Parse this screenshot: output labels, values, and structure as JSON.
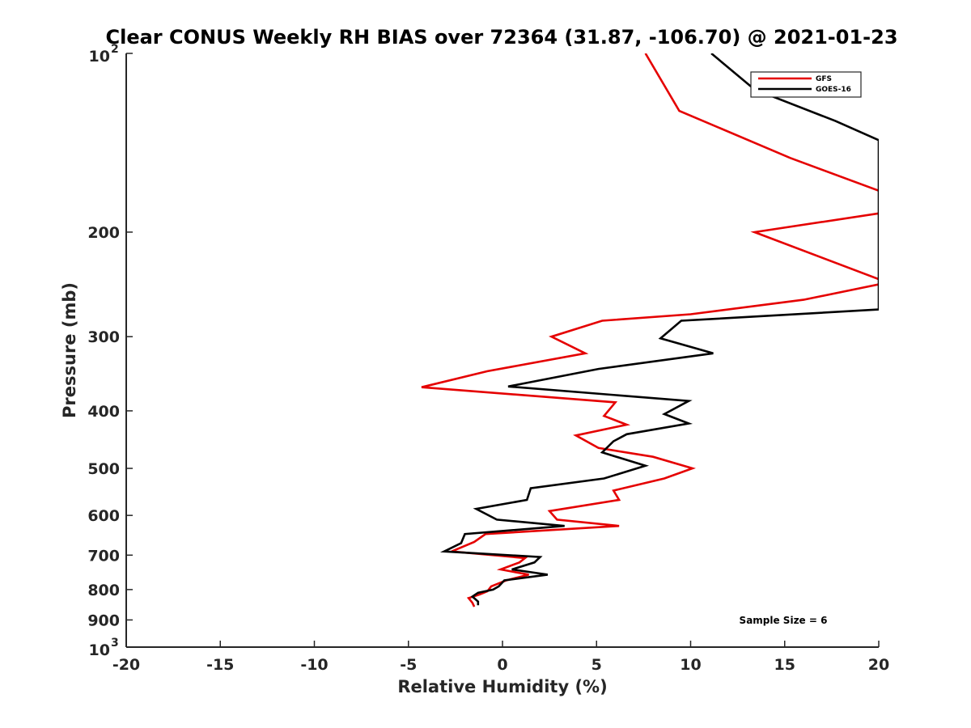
{
  "chart_data": {
    "type": "line",
    "title": "Clear CONUS Weekly RH BIAS over 72364 (31.87, -106.70) @ 2021-01-23",
    "xlabel": "Relative Humidity (%)",
    "ylabel": "Pressure (mb)",
    "xlim": [
      -20,
      20
    ],
    "ylim": [
      1000,
      100
    ],
    "y_scale": "log",
    "y_reversed": true,
    "grid": false,
    "legend_position": "top-right",
    "annotation": "Sample Size = 6",
    "x_ticks": [
      "-20",
      "-15",
      "-10",
      "-5",
      "0",
      "5",
      "10",
      "15",
      "20"
    ],
    "y_ticks": [
      {
        "value": 100,
        "label": "10",
        "sup": "2"
      },
      {
        "value": 200,
        "label": "200",
        "sup": ""
      },
      {
        "value": 300,
        "label": "300",
        "sup": ""
      },
      {
        "value": 400,
        "label": "400",
        "sup": ""
      },
      {
        "value": 500,
        "label": "500",
        "sup": ""
      },
      {
        "value": 600,
        "label": "600",
        "sup": ""
      },
      {
        "value": 700,
        "label": "700",
        "sup": ""
      },
      {
        "value": 800,
        "label": "800",
        "sup": ""
      },
      {
        "value": 900,
        "label": "900",
        "sup": ""
      },
      {
        "value": 1000,
        "label": "10",
        "sup": "3"
      }
    ],
    "series": [
      {
        "name": "GFS",
        "color": "#e50000",
        "points": [
          [
            7.6,
            100
          ],
          [
            9.4,
            125
          ],
          [
            15.3,
            150
          ],
          [
            21,
            175
          ],
          [
            21,
            185
          ],
          [
            20,
            186
          ],
          [
            13.4,
            200
          ],
          [
            20,
            240
          ],
          [
            21,
            245
          ],
          [
            20,
            245
          ],
          [
            16.0,
            260
          ],
          [
            10.0,
            275
          ],
          [
            5.3,
            282
          ],
          [
            2.6,
            300
          ],
          [
            4.4,
            320
          ],
          [
            -0.8,
            343
          ],
          [
            -4.3,
            365
          ],
          [
            6.0,
            387
          ],
          [
            5.4,
            408
          ],
          [
            6.6,
            422
          ],
          [
            3.9,
            440
          ],
          [
            5.1,
            462
          ],
          [
            8.0,
            478
          ],
          [
            10.1,
            500
          ],
          [
            8.6,
            520
          ],
          [
            5.9,
            545
          ],
          [
            6.2,
            565
          ],
          [
            2.5,
            590
          ],
          [
            2.9,
            610
          ],
          [
            6.2,
            625
          ],
          [
            -0.9,
            645
          ],
          [
            -1.5,
            665
          ],
          [
            -2.7,
            690
          ],
          [
            1.2,
            708
          ],
          [
            0.9,
            720
          ],
          [
            -0.1,
            740
          ],
          [
            1.4,
            755
          ],
          [
            0.2,
            772
          ],
          [
            -0.6,
            790
          ],
          [
            -0.8,
            805
          ],
          [
            -1.2,
            815
          ],
          [
            -1.8,
            827
          ],
          [
            -1.6,
            842
          ],
          [
            -1.5,
            855
          ]
        ]
      },
      {
        "name": "GOES-16",
        "color": "#000000",
        "points": [
          [
            11.1,
            100
          ],
          [
            13.4,
            115
          ],
          [
            17.7,
            130
          ],
          [
            20,
            140
          ],
          [
            20,
            270
          ],
          [
            9.5,
            282
          ],
          [
            8.4,
            302
          ],
          [
            11.2,
            320
          ],
          [
            5.1,
            340
          ],
          [
            0.3,
            364
          ],
          [
            9.9,
            385
          ],
          [
            8.6,
            405
          ],
          [
            9.9,
            420
          ],
          [
            6.6,
            438
          ],
          [
            5.9,
            450
          ],
          [
            5.3,
            470
          ],
          [
            7.6,
            495
          ],
          [
            5.4,
            520
          ],
          [
            1.5,
            540
          ],
          [
            1.3,
            565
          ],
          [
            -1.4,
            585
          ],
          [
            -0.3,
            610
          ],
          [
            3.3,
            625
          ],
          [
            -2.0,
            645
          ],
          [
            -2.2,
            668
          ],
          [
            -3.1,
            690
          ],
          [
            2.0,
            705
          ],
          [
            1.7,
            720
          ],
          [
            0.5,
            740
          ],
          [
            2.4,
            755
          ],
          [
            0.1,
            772
          ],
          [
            -0.2,
            790
          ],
          [
            -0.5,
            800
          ],
          [
            -1.3,
            810
          ],
          [
            -1.6,
            822
          ],
          [
            -1.3,
            838
          ],
          [
            -1.3,
            850
          ]
        ]
      }
    ]
  }
}
